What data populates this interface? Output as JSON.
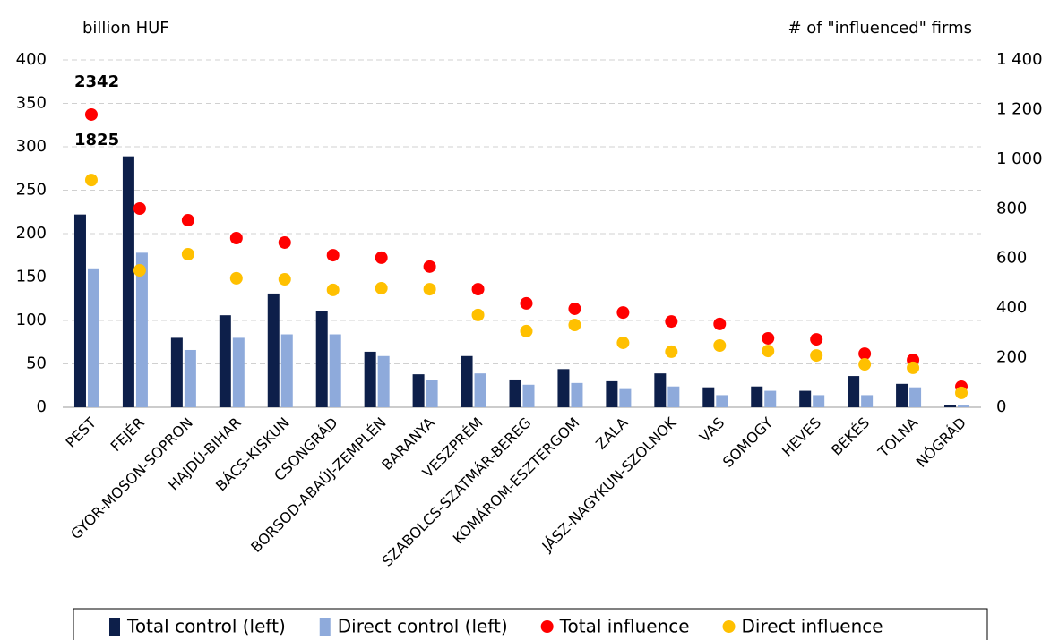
{
  "chart_data": {
    "type": "bar-scatter",
    "y_label": "billion HUF",
    "y2_label": "# of \"influenced\" firms",
    "categories": [
      "PEST",
      "FEJÉR",
      "GYOR-MOSON-SOPRON",
      "HAJDÚ-BIHAR",
      "BÁCS-KISKUN",
      "CSONGRÁD",
      "BORSOD-ABAÚJ-ZEMPLÉN",
      "BARANYA",
      "VESZPRÉM",
      "SZABOLCS-SZATMÁR-BEREG",
      "KOMÁROM-ESZTERGOM",
      "ZALA",
      "JÁSZ-NAGYKUN-SZOLNOK",
      "VAS",
      "SOMOGY",
      "HEVES",
      "BÉKÉS",
      "TOLNA",
      "NÓGRÁD"
    ],
    "series": [
      {
        "name": "Total control (left)",
        "kind": "bar",
        "color": "#0d1f4a",
        "values": [
          222,
          289,
          80,
          106,
          131,
          111,
          64,
          38,
          59,
          32,
          44,
          30,
          39,
          23,
          24,
          19,
          36,
          27,
          3
        ]
      },
      {
        "name": "Direct control (left)",
        "kind": "bar",
        "color": "#8eaadb",
        "values": [
          160,
          178,
          66,
          80,
          84,
          84,
          59,
          31,
          39,
          26,
          28,
          21,
          24,
          14,
          19,
          14,
          14,
          23,
          2
        ]
      },
      {
        "name": "Total influence",
        "kind": "dot",
        "axis": "y2",
        "color": "#ff0000",
        "values": [
          1180,
          801,
          754,
          682,
          664,
          613,
          603,
          567,
          476,
          419,
          397,
          382,
          346,
          336,
          278,
          274,
          216,
          191,
          83
        ]
      },
      {
        "name": "Direct influence",
        "kind": "dot",
        "axis": "y2",
        "color": "#ffc000",
        "values": [
          916,
          552,
          617,
          520,
          516,
          473,
          480,
          476,
          372,
          307,
          332,
          260,
          224,
          249,
          227,
          209,
          173,
          159,
          58
        ]
      }
    ],
    "annotations": [
      {
        "text": "2342",
        "color": "#ff0000"
      },
      {
        "text": "1825",
        "color": "#ffc000"
      }
    ],
    "ylim": [
      0,
      400
    ],
    "yticks": [
      0,
      50,
      100,
      150,
      200,
      250,
      300,
      350,
      400
    ],
    "y2lim": [
      0,
      1400
    ],
    "y2ticks": [
      0,
      200,
      400,
      600,
      800,
      {
        "value": 1000,
        "label": "1 000"
      },
      {
        "value": 1200,
        "label": "1 200"
      },
      {
        "value": 1400,
        "label": "1 400"
      }
    ],
    "grid": true
  }
}
